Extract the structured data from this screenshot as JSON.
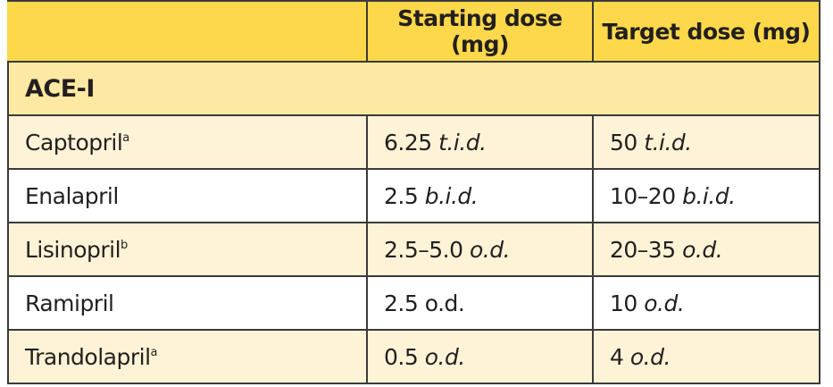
{
  "header": {
    "columns": [
      "Starting dose (mg)",
      "Target dose (mg)"
    ]
  },
  "section": "ACE-I",
  "rows": [
    {
      "drug": "Captopril",
      "note": "a",
      "start": {
        "amount": "6.25",
        "freq": "t.i.d.",
        "italic": true
      },
      "target": {
        "amount": "50",
        "freq": "t.i.d.",
        "italic": true
      }
    },
    {
      "drug": "Enalapril",
      "start": {
        "amount": "2.5",
        "freq": "b.i.d.",
        "italic": true
      },
      "target": {
        "amount": "10–20",
        "freq": "b.i.d.",
        "italic": true
      }
    },
    {
      "drug": "Lisinopril",
      "note": "b",
      "start": {
        "amount": "2.5–5.0",
        "freq": "o.d.",
        "italic": true
      },
      "target": {
        "amount": "20–35",
        "freq": "o.d.",
        "italic": true
      }
    },
    {
      "drug": "Ramipril",
      "start": {
        "amount": "2.5",
        "freq": "o.d.",
        "italic": false
      },
      "target": {
        "amount": "10",
        "freq": "o.d.",
        "italic": true
      }
    },
    {
      "drug": "Trandolapril",
      "note": "a",
      "start": {
        "amount": "0.5",
        "freq": "o.d.",
        "italic": true
      },
      "target": {
        "amount": "4",
        "freq": "o.d.",
        "italic": true
      }
    }
  ]
}
